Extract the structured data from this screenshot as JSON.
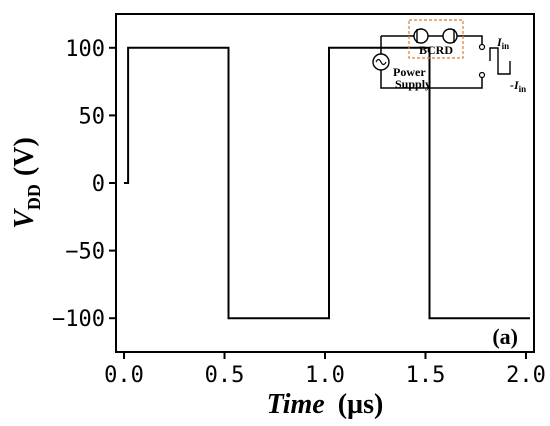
{
  "chart_data": {
    "type": "line",
    "title": "",
    "xlabel": {
      "italic": "Time",
      "unit": "(µs)"
    },
    "ylabel": {
      "main": "V",
      "subscript": "DD",
      "unit": "(V)"
    },
    "xlim": [
      -0.04,
      2.04
    ],
    "ylim": [
      -125,
      125
    ],
    "xticks": [
      0.0,
      0.5,
      1.0,
      1.5,
      2.0
    ],
    "xtick_labels": [
      "0.0",
      "0.5",
      "1.0",
      "1.5",
      "2.0"
    ],
    "yticks": [
      100,
      50,
      0,
      -50,
      -100
    ],
    "ytick_labels": [
      "100",
      "50",
      "0",
      "−50",
      "−100"
    ],
    "series": [
      {
        "x": [
          0.0,
          0.02,
          0.02,
          0.52,
          0.52,
          1.02,
          1.02,
          1.52,
          1.52,
          2.02
        ],
        "y": [
          0,
          0,
          100,
          100,
          -100,
          -100,
          100,
          100,
          -100,
          -100
        ]
      }
    ],
    "panel_label": "(a)",
    "grid": false,
    "inset": {
      "bcrd_label": "BCRD",
      "power_supply_label": [
        "Power",
        "Supply"
      ],
      "current_pos": {
        "main": "I",
        "subscript": "in"
      },
      "current_neg": {
        "main": "-I",
        "subscript": "in"
      }
    }
  }
}
